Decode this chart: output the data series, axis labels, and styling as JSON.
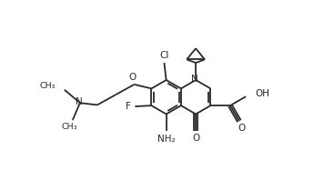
{
  "background_color": "#ffffff",
  "line_color": "#2a2a2a",
  "line_width": 1.3,
  "fig_width": 3.67,
  "fig_height": 2.09,
  "dpi": 100,
  "xlim": [
    -1.5,
    4.5
  ],
  "ylim": [
    -2.2,
    2.4
  ]
}
